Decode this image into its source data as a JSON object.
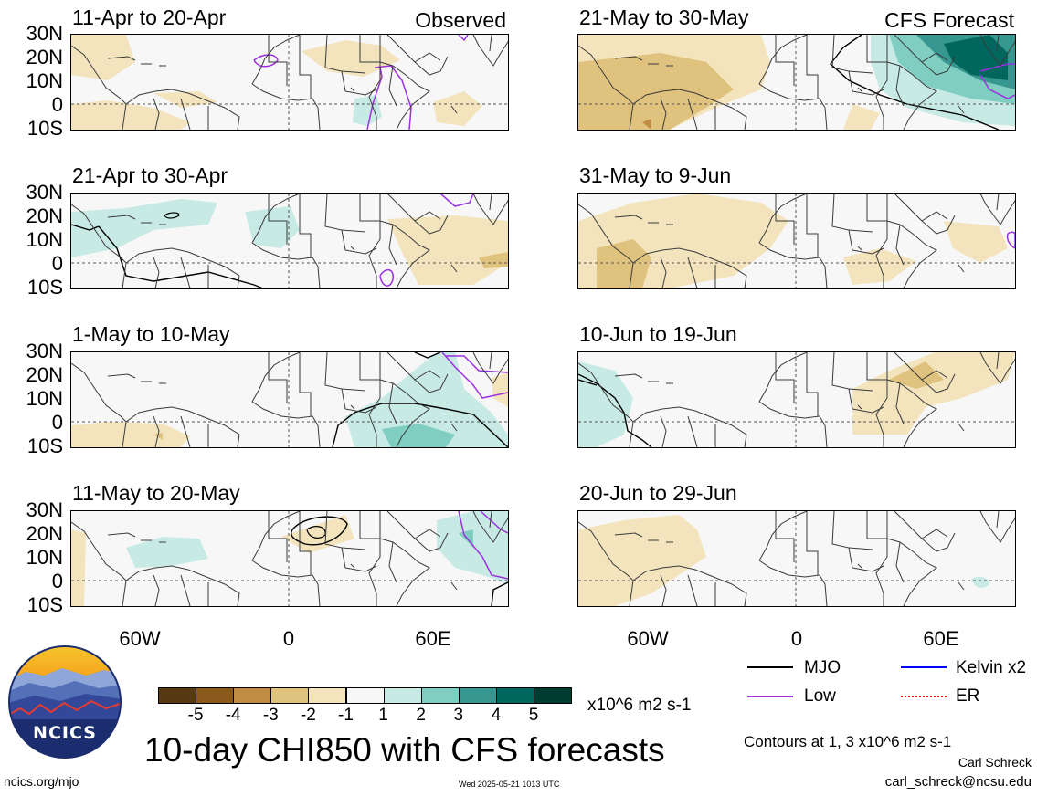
{
  "panels": [
    {
      "id": "p1",
      "title": "11-Apr to 20-Apr",
      "tag": "Observed"
    },
    {
      "id": "p2",
      "title": "21-Apr to 30-Apr",
      "tag": ""
    },
    {
      "id": "p3",
      "title": "1-May to 10-May",
      "tag": ""
    },
    {
      "id": "p4",
      "title": "11-May to 20-May",
      "tag": ""
    },
    {
      "id": "p5",
      "title": "21-May to 30-May",
      "tag": "CFS Forecast"
    },
    {
      "id": "p6",
      "title": "31-May to 9-Jun",
      "tag": ""
    },
    {
      "id": "p7",
      "title": "10-Jun to 19-Jun",
      "tag": ""
    },
    {
      "id": "p8",
      "title": "20-Jun to 29-Jun",
      "tag": ""
    }
  ],
  "axes": {
    "lat_labels": [
      "30N",
      "20N",
      "10N",
      "0",
      "10S"
    ],
    "lon_labels": [
      "60W",
      "0",
      "60E"
    ]
  },
  "colorbar": {
    "ticks": [
      "-5",
      "-4",
      "-3",
      "-2",
      "-1",
      "1",
      "2",
      "3",
      "4",
      "5"
    ],
    "colors": [
      "#583a12",
      "#8a5a1d",
      "#c08b43",
      "#dfc27d",
      "#f3e4bd",
      "#f7f7f7",
      "#c7eae5",
      "#80cdc1",
      "#35978f",
      "#01665e",
      "#003c30"
    ],
    "units": "x10^6 m2 s-1"
  },
  "legend": [
    {
      "label": "MJO",
      "color": "#000000"
    },
    {
      "label": "Kelvin x2",
      "color": "#0000ff"
    },
    {
      "label": "Low",
      "color": "#9d30e0"
    },
    {
      "label": "ER",
      "color": "#ff0000"
    }
  ],
  "main_title": "10-day CHI850 with CFS forecasts",
  "contours_note": "Contours at 1, 3 x10^6 m2 s-1",
  "logo_text": "NCICS",
  "author": "Carl Schreck",
  "email": "carl_schreck@ncsu.edu",
  "site": "ncics.org/mjo",
  "timestamp": "Wed 2025-05-21 1013 UTC"
}
